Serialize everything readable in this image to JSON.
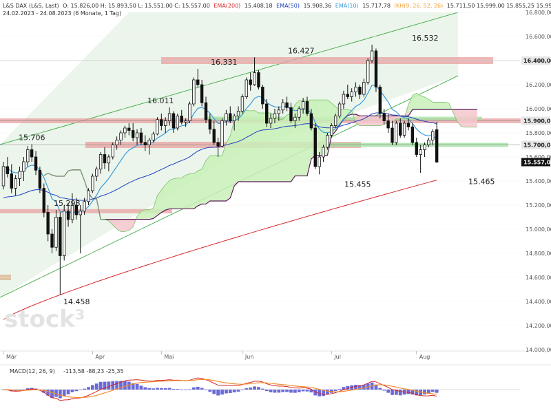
{
  "header": {
    "symbol_line_prefix": "L&S DAX (L&S, Last)",
    "ohlc": "O: 15.826,00  H: 15.893,50  L: 15.551,00  C: 15.557,00",
    "date_range": "24.02.2023 - 24.08.2023  (6 Monate, 1 Tag)",
    "indicators": [
      {
        "label": "EMA(200)",
        "value": "15.408,18",
        "color": "#d62728"
      },
      {
        "label": "EMA(50)",
        "value": "15.908,36",
        "color": "#1f3fbf"
      },
      {
        "label": "EMA(10)",
        "value": "15.717,78",
        "color": "#3a9ad9"
      },
      {
        "label": "IKH(9, 26, 52, 26)",
        "value": "15.711,50   15.999,00   15.855,25   15.993,75   15.557,00",
        "color": "#f2a03a"
      }
    ]
  },
  "watermark": "stock³",
  "macd": {
    "label": "MACD(12, 26, 9)",
    "values": "-113,58   -88,23   -25,35",
    "colors": {
      "macd": "#d62728",
      "signal": "#f28c28",
      "hist": "#6a6ad9"
    }
  },
  "colors": {
    "up": "#ffffff",
    "down": "#111111",
    "ema10": "#3a9ad9",
    "ema50": "#1f3fbf",
    "ema200": "#d62728",
    "kumo_bull": "#c9f0b8",
    "kumo_bear": "#f4c7cc",
    "span_b": "#5a1a5a",
    "channel": "#4caf50",
    "resistance_band": "#e8a0a0",
    "support_band": "#9fe09f"
  },
  "chart_data": {
    "type": "candlestick",
    "title": "",
    "ylim": [
      14000,
      16800
    ],
    "y_ticks": [
      "16.800,00",
      "16.600,00",
      "16.400,00",
      "16.200,00",
      "16.000,00",
      "15.800,00",
      "15.600,00",
      "15.400,00",
      "15.200,00",
      "15.000,00",
      "14.800,00",
      "14.600,00",
      "14.400,00",
      "14.200,00",
      "14.000,00"
    ],
    "y_tick_values": [
      16800,
      16600,
      16400,
      16200,
      16000,
      15800,
      15600,
      15400,
      15200,
      15000,
      14800,
      14600,
      14400,
      14200,
      14000
    ],
    "x_month_labels": [
      {
        "label": "Mär",
        "date": "2023-03-01"
      },
      {
        "label": "Apr",
        "date": "2023-04-03"
      },
      {
        "label": "Mai",
        "date": "2023-05-02"
      },
      {
        "label": "Jun",
        "date": "2023-06-01"
      },
      {
        "label": "Jul",
        "date": "2023-07-03"
      },
      {
        "label": "Aug",
        "date": "2023-08-01"
      }
    ],
    "price_tags": [
      {
        "label": "16.400,00",
        "value": 16400,
        "color": "#e6e6e6",
        "text_color": "#222"
      },
      {
        "label": "15.900,00",
        "value": 15900,
        "color": "#e6e6e6",
        "text_color": "#222"
      },
      {
        "label": "15.700,00",
        "value": 15700,
        "color": "#e6e6e6",
        "text_color": "#222"
      },
      {
        "label": "15.557,00",
        "value": 15557,
        "color": "#111111",
        "text_color": "#ffffff"
      }
    ],
    "annotations": [
      {
        "label": "15.706",
        "value": 15706
      },
      {
        "label": "15.298",
        "value": 15298
      },
      {
        "label": "14.458",
        "value": 14458
      },
      {
        "label": "16.011",
        "value": 16011
      },
      {
        "label": "16.331",
        "value": 16331
      },
      {
        "label": "16.427",
        "value": 16427
      },
      {
        "label": "15.455",
        "value": 15455
      },
      {
        "label": "16.532",
        "value": 16532
      },
      {
        "label": "15.465",
        "value": 15465
      }
    ],
    "candles": [
      [
        15360,
        15560,
        15330,
        15520
      ],
      [
        15520,
        15600,
        15430,
        15460
      ],
      [
        15460,
        15540,
        15300,
        15340
      ],
      [
        15340,
        15450,
        15280,
        15420
      ],
      [
        15420,
        15520,
        15360,
        15480
      ],
      [
        15480,
        15600,
        15400,
        15560
      ],
      [
        15560,
        15690,
        15520,
        15660
      ],
      [
        15660,
        15706,
        15560,
        15600
      ],
      [
        15600,
        15650,
        15450,
        15490
      ],
      [
        15490,
        15520,
        15300,
        15340
      ],
      [
        15340,
        15380,
        15100,
        15140
      ],
      [
        15140,
        15200,
        14900,
        14960
      ],
      [
        14960,
        15000,
        14800,
        14850
      ],
      [
        14850,
        15160,
        14820,
        15100
      ],
      [
        15100,
        15140,
        14458,
        14780
      ],
      [
        14780,
        15200,
        14740,
        15150
      ],
      [
        15150,
        15220,
        15020,
        15080
      ],
      [
        15080,
        15298,
        15050,
        15200
      ],
      [
        15200,
        15260,
        15080,
        15120
      ],
      [
        15120,
        15200,
        14800,
        15150
      ],
      [
        15150,
        15260,
        15120,
        15230
      ],
      [
        15230,
        15340,
        15200,
        15320
      ],
      [
        15320,
        15460,
        15300,
        15440
      ],
      [
        15440,
        15520,
        15400,
        15500
      ],
      [
        15500,
        15640,
        15460,
        15620
      ],
      [
        15620,
        15680,
        15500,
        15550
      ],
      [
        15550,
        15620,
        15480,
        15600
      ],
      [
        15600,
        15720,
        15580,
        15700
      ],
      [
        15700,
        15770,
        15660,
        15740
      ],
      [
        15740,
        15820,
        15700,
        15800
      ],
      [
        15800,
        15860,
        15760,
        15840
      ],
      [
        15840,
        15880,
        15780,
        15820
      ],
      [
        15820,
        15880,
        15730,
        15760
      ],
      [
        15760,
        15830,
        15700,
        15800
      ],
      [
        15800,
        15840,
        15700,
        15720
      ],
      [
        15720,
        15780,
        15650,
        15700
      ],
      [
        15700,
        15760,
        15620,
        15740
      ],
      [
        15740,
        15810,
        15720,
        15790
      ],
      [
        15790,
        15930,
        15780,
        15910
      ],
      [
        15910,
        15960,
        15820,
        15860
      ],
      [
        15860,
        15930,
        15800,
        15900
      ],
      [
        15900,
        16011,
        15860,
        15960
      ],
      [
        15960,
        15980,
        15800,
        15840
      ],
      [
        15840,
        15960,
        15820,
        15940
      ],
      [
        15940,
        15990,
        15870,
        15890
      ],
      [
        15890,
        15920,
        15850,
        15900
      ],
      [
        15900,
        16060,
        15880,
        16040
      ],
      [
        16040,
        16260,
        16020,
        16240
      ],
      [
        16240,
        16331,
        16180,
        16200
      ],
      [
        16200,
        16240,
        16020,
        16050
      ],
      [
        16050,
        16100,
        15880,
        15910
      ],
      [
        15910,
        15960,
        15790,
        15830
      ],
      [
        15830,
        15900,
        15700,
        15720
      ],
      [
        15720,
        15760,
        15600,
        15690
      ],
      [
        15690,
        15920,
        15680,
        15900
      ],
      [
        15900,
        15990,
        15860,
        15960
      ],
      [
        15960,
        16020,
        15880,
        15900
      ],
      [
        15900,
        15960,
        15820,
        15940
      ],
      [
        15940,
        16020,
        15900,
        15980
      ],
      [
        15980,
        16120,
        15960,
        16100
      ],
      [
        16100,
        16260,
        16080,
        16240
      ],
      [
        16240,
        16300,
        16150,
        16200
      ],
      [
        16200,
        16427,
        16190,
        16300
      ],
      [
        16300,
        16320,
        16160,
        16180
      ],
      [
        16180,
        16200,
        16000,
        16040
      ],
      [
        16040,
        16080,
        15850,
        15880
      ],
      [
        15880,
        15960,
        15840,
        15920
      ],
      [
        15920,
        16000,
        15880,
        15960
      ],
      [
        15960,
        16020,
        15900,
        15990
      ],
      [
        15990,
        16080,
        15960,
        16050
      ],
      [
        16050,
        16100,
        15980,
        16010
      ],
      [
        16010,
        16050,
        15880,
        15900
      ],
      [
        15900,
        15960,
        15840,
        15930
      ],
      [
        15930,
        16020,
        15900,
        16000
      ],
      [
        16000,
        16090,
        15960,
        16060
      ],
      [
        16060,
        16100,
        15940,
        15960
      ],
      [
        15960,
        16000,
        15820,
        15840
      ],
      [
        15840,
        15880,
        15500,
        15520
      ],
      [
        15520,
        15640,
        15455,
        15600
      ],
      [
        15600,
        15700,
        15560,
        15680
      ],
      [
        15680,
        15800,
        15660,
        15780
      ],
      [
        15780,
        15880,
        15760,
        15860
      ],
      [
        15860,
        15960,
        15840,
        15940
      ],
      [
        15940,
        16060,
        15920,
        16040
      ],
      [
        16040,
        16150,
        16000,
        16120
      ],
      [
        16120,
        16200,
        16080,
        16100
      ],
      [
        16100,
        16170,
        16060,
        16140
      ],
      [
        16140,
        16220,
        16100,
        16180
      ],
      [
        16180,
        16200,
        16080,
        16120
      ],
      [
        16120,
        16250,
        16100,
        16220
      ],
      [
        16220,
        16420,
        16200,
        16400
      ],
      [
        16400,
        16532,
        16380,
        16480
      ],
      [
        16480,
        16500,
        16140,
        16180
      ],
      [
        16180,
        16200,
        15920,
        15960
      ],
      [
        15960,
        16000,
        15870,
        15900
      ],
      [
        15900,
        15960,
        15800,
        15840
      ],
      [
        15840,
        15900,
        15700,
        15720
      ],
      [
        15720,
        15900,
        15700,
        15880
      ],
      [
        15880,
        15920,
        15760,
        15780
      ],
      [
        15780,
        15900,
        15760,
        15880
      ],
      [
        15880,
        15920,
        15820,
        15850
      ],
      [
        15850,
        15880,
        15700,
        15720
      ],
      [
        15720,
        15760,
        15600,
        15620
      ],
      [
        15620,
        15700,
        15468,
        15660
      ],
      [
        15660,
        15720,
        15600,
        15700
      ],
      [
        15700,
        15760,
        15680,
        15740
      ],
      [
        15740,
        15830,
        15700,
        15810
      ],
      [
        15826,
        15893,
        15551,
        15557
      ]
    ]
  }
}
